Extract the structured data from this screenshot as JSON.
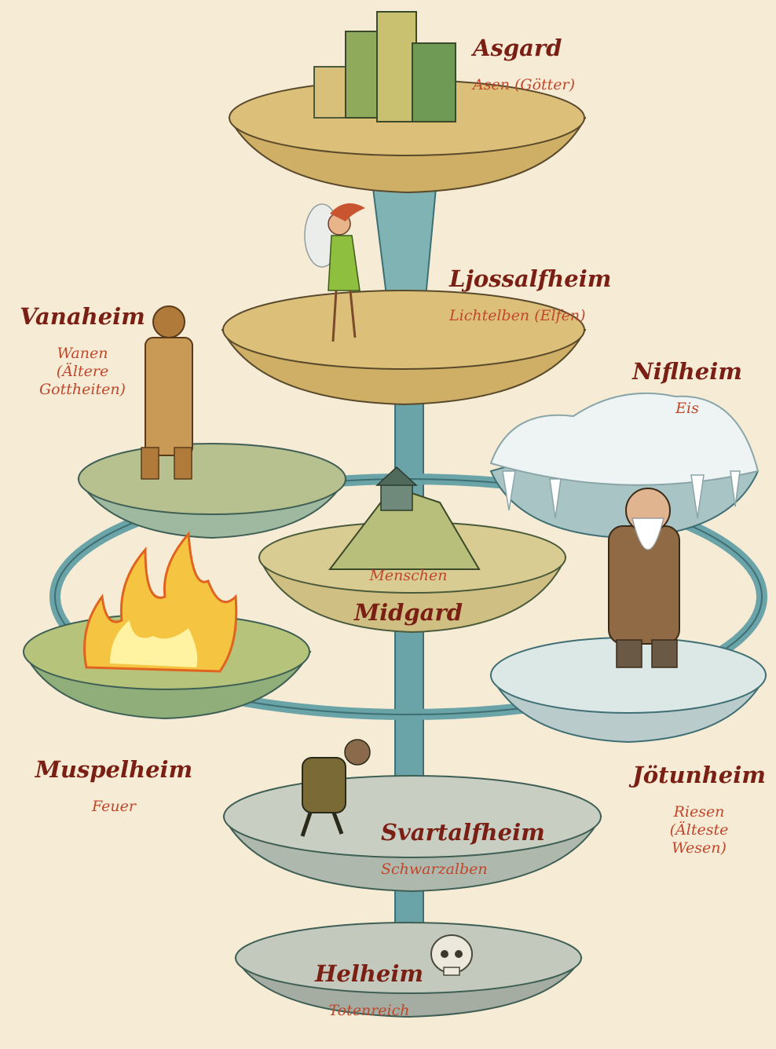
{
  "colors": {
    "background": "#f6ecd6",
    "name_text": "#7a1f14",
    "desc_text": "#c0472b",
    "trunk": "#6aa3a8",
    "disc_sand": "#dcc07a",
    "disc_moss": "#b7c08f",
    "disc_ice": "#dce8e6",
    "disc_stone": "#c9cec3",
    "fire": "#f5c542"
  },
  "realms": {
    "asgard": {
      "name": "Asgard",
      "desc": "Asen (Götter)"
    },
    "ljossalfheim": {
      "name": "Ljossalfheim",
      "desc": "Lichtelben (Elfen)"
    },
    "vanaheim": {
      "name": "Vanaheim",
      "desc": "Wanen\n(Ältere\nGottheiten)"
    },
    "niflheim": {
      "name": "Niflheim",
      "desc": "Eis"
    },
    "midgard": {
      "name": "Midgard",
      "desc": "Menschen"
    },
    "muspelheim": {
      "name": "Muspelheim",
      "desc": "Feuer"
    },
    "jotunheim": {
      "name": "Jötunheim",
      "desc": "Riesen\n(Älteste\nWesen)"
    },
    "svartalfheim": {
      "name": "Svartalfheim",
      "desc": "Schwarzalben"
    },
    "helheim": {
      "name": "Helheim",
      "desc": "Totenreich"
    }
  }
}
